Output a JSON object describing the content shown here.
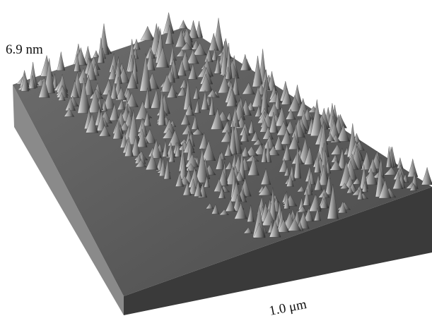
{
  "labels": {
    "height": "6.9 nm",
    "width": "1.0 μm"
  }
}
